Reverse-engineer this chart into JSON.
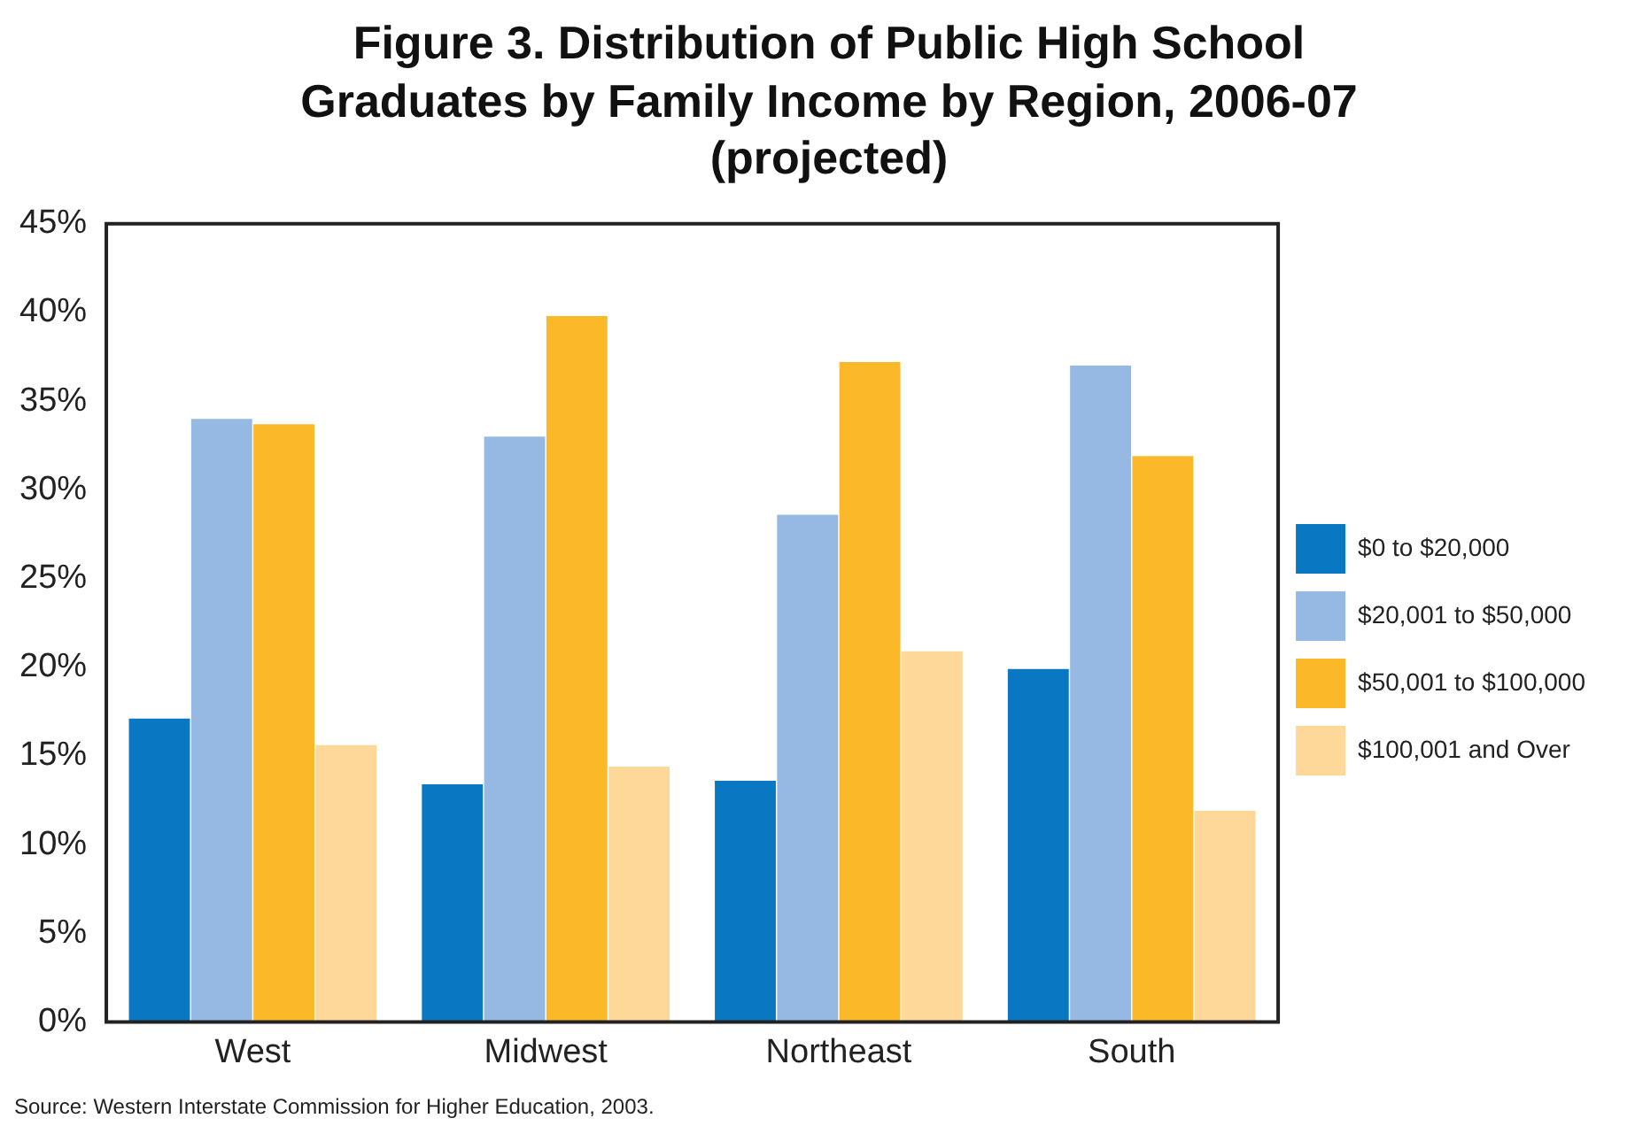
{
  "chart_data": {
    "type": "bar",
    "title": "Figure 3. Distribution of Public High School Graduates by Family Income by Region, 2006-07 (projected)",
    "categories": [
      "West",
      "Midwest",
      "Northeast",
      "South"
    ],
    "series": [
      {
        "name": "$0 to $20,000",
        "color": "#0a77c2",
        "values": [
          17.1,
          13.4,
          13.6,
          19.9
        ]
      },
      {
        "name": "$20,001 to $50,000",
        "color": "#95b9e3",
        "values": [
          34.0,
          33.0,
          28.6,
          37.0
        ]
      },
      {
        "name": "$50,001 to $100,000",
        "color": "#fbb829",
        "values": [
          33.7,
          39.8,
          37.2,
          31.9
        ]
      },
      {
        "name": "$100,001 and Over",
        "color": "#fdd898",
        "values": [
          15.6,
          14.4,
          20.9,
          11.9
        ]
      }
    ],
    "ylim": [
      0,
      45
    ],
    "yticks": [
      {
        "value": 0,
        "label": "0%"
      },
      {
        "value": 5,
        "label": "5%"
      },
      {
        "value": 10,
        "label": "10%"
      },
      {
        "value": 15,
        "label": "15%"
      },
      {
        "value": 20,
        "label": "20%"
      },
      {
        "value": 25,
        "label": "25%"
      },
      {
        "value": 30,
        "label": "30%"
      },
      {
        "value": 35,
        "label": "35%"
      },
      {
        "value": 40,
        "label": "40%"
      },
      {
        "value": 45,
        "label": "45%"
      }
    ],
    "grid": false,
    "legend": "right",
    "annotations": [
      "Source: Western Interstate Commission for Higher Education, 2003."
    ]
  }
}
